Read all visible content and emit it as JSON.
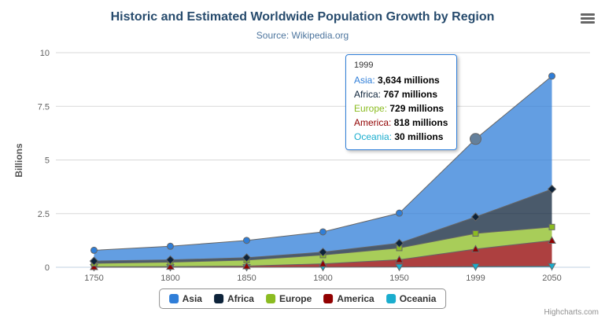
{
  "credits": "Highcharts.com",
  "tooltip": {
    "header": "1999",
    "border_color": "#2f7ed8",
    "rows": [
      {
        "name": "Asia",
        "value": "3,634 millions"
      },
      {
        "name": "Africa",
        "value": "767 millions"
      },
      {
        "name": "Europe",
        "value": "729 millions"
      },
      {
        "name": "America",
        "value": "818 millions"
      },
      {
        "name": "Oceania",
        "value": "30 millions"
      }
    ]
  },
  "chart_data": {
    "type": "area",
    "stacking": "normal",
    "title": "Historic and Estimated Worldwide Population Growth by Region",
    "subtitle": "Source: Wikipedia.org",
    "xlabel": "",
    "ylabel": "Billions",
    "values_unit": "millions",
    "categories": [
      "1750",
      "1800",
      "1850",
      "1900",
      "1950",
      "1999",
      "2050"
    ],
    "yticks": [
      0,
      2.5,
      5,
      7.5,
      10
    ],
    "ylim": [
      0,
      10
    ],
    "grid": true,
    "legend_position": "bottom",
    "series": [
      {
        "name": "Asia",
        "color": "#2f7ed8",
        "marker": "circle",
        "values": [
          502,
          635,
          809,
          947,
          1402,
          3634,
          5268
        ]
      },
      {
        "name": "Africa",
        "color": "#0d233a",
        "marker": "diamond",
        "values": [
          106,
          107,
          111,
          133,
          221,
          767,
          1766
        ]
      },
      {
        "name": "Europe",
        "color": "#8bbc21",
        "marker": "square",
        "values": [
          163,
          203,
          276,
          408,
          547,
          729,
          628
        ]
      },
      {
        "name": "America",
        "color": "#910000",
        "marker": "triangle",
        "values": [
          18,
          31,
          54,
          156,
          339,
          818,
          1201
        ]
      },
      {
        "name": "Oceania",
        "color": "#1aadce",
        "marker": "triangle-down",
        "values": [
          2,
          2,
          2,
          6,
          13,
          30,
          46
        ]
      }
    ],
    "highlight": {
      "series": "Asia",
      "category": "1999",
      "color": "#64809c"
    }
  }
}
